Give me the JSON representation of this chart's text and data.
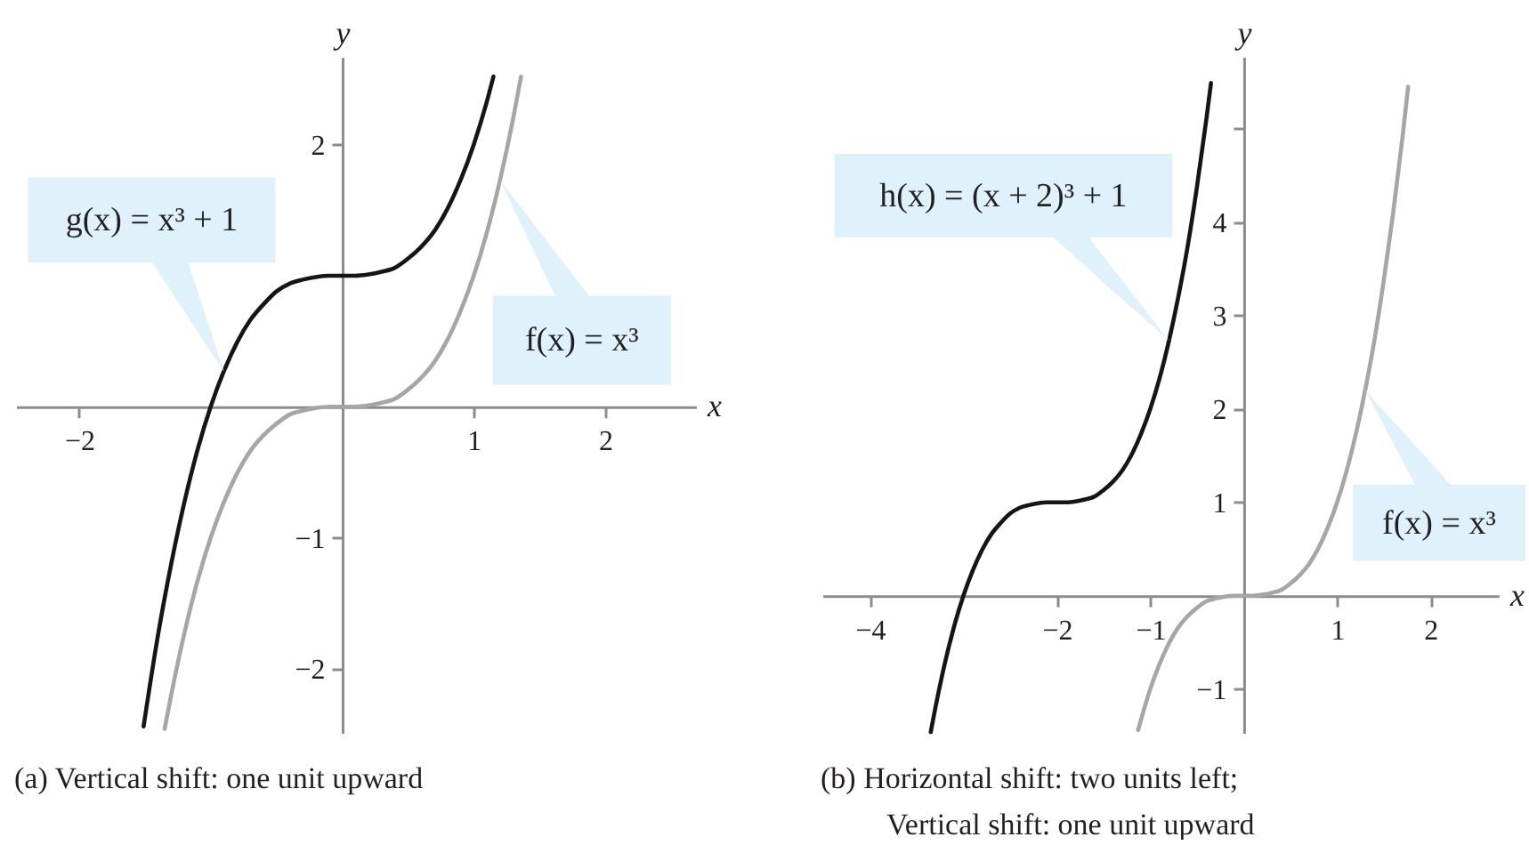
{
  "chart_data": [
    {
      "type": "line",
      "xlabel": "x",
      "ylabel": "y",
      "xlim": [
        -2.48,
        2.69
      ],
      "ylim": [
        -2.49,
        2.67
      ],
      "xticks": [
        -2,
        1,
        2
      ],
      "yticks": [
        -2,
        -1,
        2
      ],
      "series": [
        {
          "name": "g(x) = x³ + 1",
          "color": "#151515",
          "x": [
            -1.51,
            -1.4,
            -1.3,
            -1.2,
            -1.1,
            -1.0,
            -0.9,
            -0.8,
            -0.7,
            -0.6,
            -0.5,
            -0.4,
            -0.3,
            -0.2,
            -0.1,
            0,
            0.1,
            0.2,
            0.3,
            0.4,
            0.5,
            0.6,
            0.7,
            0.8,
            0.9,
            1.0,
            1.1,
            1.15
          ],
          "values": [
            -2.44,
            -1.74,
            -1.2,
            -0.73,
            -0.33,
            0,
            0.27,
            0.49,
            0.66,
            0.78,
            0.88,
            0.94,
            0.97,
            0.99,
            1,
            1,
            1,
            1.01,
            1.03,
            1.06,
            1.13,
            1.22,
            1.34,
            1.51,
            1.73,
            2,
            2.33,
            2.52
          ]
        },
        {
          "name": "f(x) = x³",
          "color": "#a6a6a6",
          "x": [
            -1.35,
            -1.3,
            -1.2,
            -1.1,
            -1.0,
            -0.9,
            -0.8,
            -0.7,
            -0.6,
            -0.5,
            -0.4,
            -0.3,
            -0.2,
            -0.1,
            0,
            0.1,
            0.2,
            0.3,
            0.4,
            0.5,
            0.6,
            0.7,
            0.8,
            0.9,
            1.0,
            1.1,
            1.2,
            1.3,
            1.36
          ],
          "values": [
            -2.46,
            -2.2,
            -1.73,
            -1.33,
            -1,
            -0.73,
            -0.51,
            -0.34,
            -0.22,
            -0.13,
            -0.06,
            -0.03,
            -0.01,
            0,
            0,
            0,
            0.01,
            0.03,
            0.06,
            0.13,
            0.22,
            0.34,
            0.51,
            0.73,
            1,
            1.33,
            1.73,
            2.2,
            2.52
          ]
        }
      ],
      "annotations": [
        "(a) Vertical shift: one unit upward"
      ]
    },
    {
      "type": "line",
      "xlabel": "x",
      "ylabel": "y",
      "xlim": [
        -4.51,
        2.73
      ],
      "ylim": [
        -1.47,
        5.77
      ],
      "xticks": [
        -4,
        -2,
        -1,
        1,
        2
      ],
      "yticks": [
        -1,
        1,
        2,
        3,
        4,
        {
          "value": 5,
          "label": null
        }
      ],
      "series": [
        {
          "name": "h(x) = (x + 2)³ + 1",
          "color": "#151515",
          "x": [
            -3.35,
            -3.3,
            -3.2,
            -3.1,
            -3,
            -2.9,
            -2.8,
            -2.7,
            -2.6,
            -2.5,
            -2.4,
            -2.3,
            -2.2,
            -2.1,
            -2,
            -1.9,
            -1.8,
            -1.7,
            -1.6,
            -1.5,
            -1.4,
            -1.3,
            -1.2,
            -1.1,
            -1,
            -0.9,
            -0.8,
            -0.7,
            -0.6,
            -0.5,
            -0.4,
            -0.35
          ],
          "values": [
            -1.46,
            -1.2,
            -0.73,
            -0.33,
            0,
            0.27,
            0.49,
            0.66,
            0.78,
            0.88,
            0.94,
            0.97,
            0.99,
            1,
            1,
            1,
            1.01,
            1.03,
            1.06,
            1.13,
            1.22,
            1.34,
            1.51,
            1.73,
            2,
            2.33,
            2.73,
            3.2,
            3.74,
            4.38,
            5.1,
            5.49
          ]
        },
        {
          "name": "f(x) = x³",
          "color": "#a6a6a6",
          "x": [
            -1.13,
            -1.1,
            -1.0,
            -0.9,
            -0.8,
            -0.7,
            -0.6,
            -0.5,
            -0.4,
            -0.3,
            -0.2,
            -0.1,
            0,
            0.1,
            0.2,
            0.3,
            0.4,
            0.5,
            0.6,
            0.7,
            0.8,
            0.9,
            1.0,
            1.1,
            1.2,
            1.3,
            1.4,
            1.5,
            1.6,
            1.7,
            1.76
          ],
          "values": [
            -1.44,
            -1.33,
            -1,
            -0.73,
            -0.51,
            -0.34,
            -0.22,
            -0.13,
            -0.06,
            -0.03,
            -0.01,
            0,
            0,
            0,
            0.01,
            0.03,
            0.06,
            0.13,
            0.22,
            0.34,
            0.51,
            0.73,
            1,
            1.33,
            1.73,
            2.2,
            2.74,
            3.38,
            4.1,
            4.91,
            5.45
          ]
        }
      ],
      "annotations": [
        "(b) Horizontal shift: two units left;\nVertical shift: one unit upward"
      ]
    }
  ]
}
